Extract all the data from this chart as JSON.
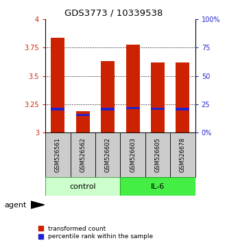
{
  "title": "GDS3773 / 10339538",
  "categories": [
    "GSM526561",
    "GSM526562",
    "GSM526602",
    "GSM526603",
    "GSM526605",
    "GSM526678"
  ],
  "bar_heights": [
    3.84,
    3.19,
    3.63,
    3.78,
    3.62,
    3.62
  ],
  "blue_markers": [
    3.205,
    3.155,
    3.205,
    3.215,
    3.21,
    3.205
  ],
  "ylim_left": [
    3.0,
    4.0
  ],
  "ylim_right": [
    0,
    100
  ],
  "yticks_left": [
    3.0,
    3.25,
    3.5,
    3.75,
    4.0
  ],
  "yticks_right": [
    0,
    25,
    50,
    75,
    100
  ],
  "ytick_labels_left": [
    "3",
    "3.25",
    "3.5",
    "3.75",
    "4"
  ],
  "ytick_labels_right": [
    "0%",
    "25",
    "50",
    "75",
    "100%"
  ],
  "bar_color": "#cc2200",
  "blue_color": "#2222cc",
  "bar_width": 0.55,
  "sample_bg_color": "#cccccc",
  "control_color": "#ccffcc",
  "il6_color": "#44ee44",
  "legend_items": [
    "transformed count",
    "percentile rank within the sample"
  ],
  "agent_label": "agent",
  "left_axis_color": "#cc2200",
  "right_axis_color": "#2222cc"
}
